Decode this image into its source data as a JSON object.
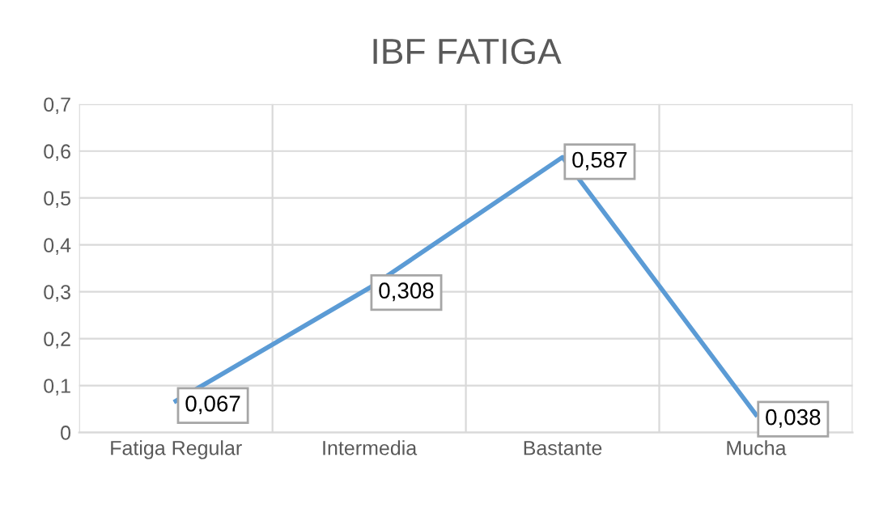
{
  "chart_data": {
    "type": "line",
    "title": "IBF FATIGA",
    "categories": [
      "Fatiga Regular",
      "Intermedia",
      "Bastante",
      "Mucha"
    ],
    "series": [
      {
        "color": "#5b9bd5",
        "values": [
          0.067,
          0.308,
          0.587,
          0.038
        ],
        "value_labels": [
          "0,067",
          "0,308",
          "0,587",
          "0,038"
        ]
      }
    ],
    "ylim": [
      0,
      0.7
    ],
    "yticks": [
      0,
      {
        "value": 0.1,
        "label": "0,1"
      },
      {
        "value": 0.2,
        "label": "0,2"
      },
      {
        "value": 0.3,
        "label": "0,3"
      },
      {
        "value": 0.4,
        "label": "0,4"
      },
      {
        "value": 0.5,
        "label": "0,5"
      },
      {
        "value": 0.6,
        "label": "0,6"
      },
      {
        "value": 0.7,
        "label": "0,7"
      }
    ],
    "grid": true,
    "marker": "none",
    "line_style": "solid",
    "legend": false
  }
}
